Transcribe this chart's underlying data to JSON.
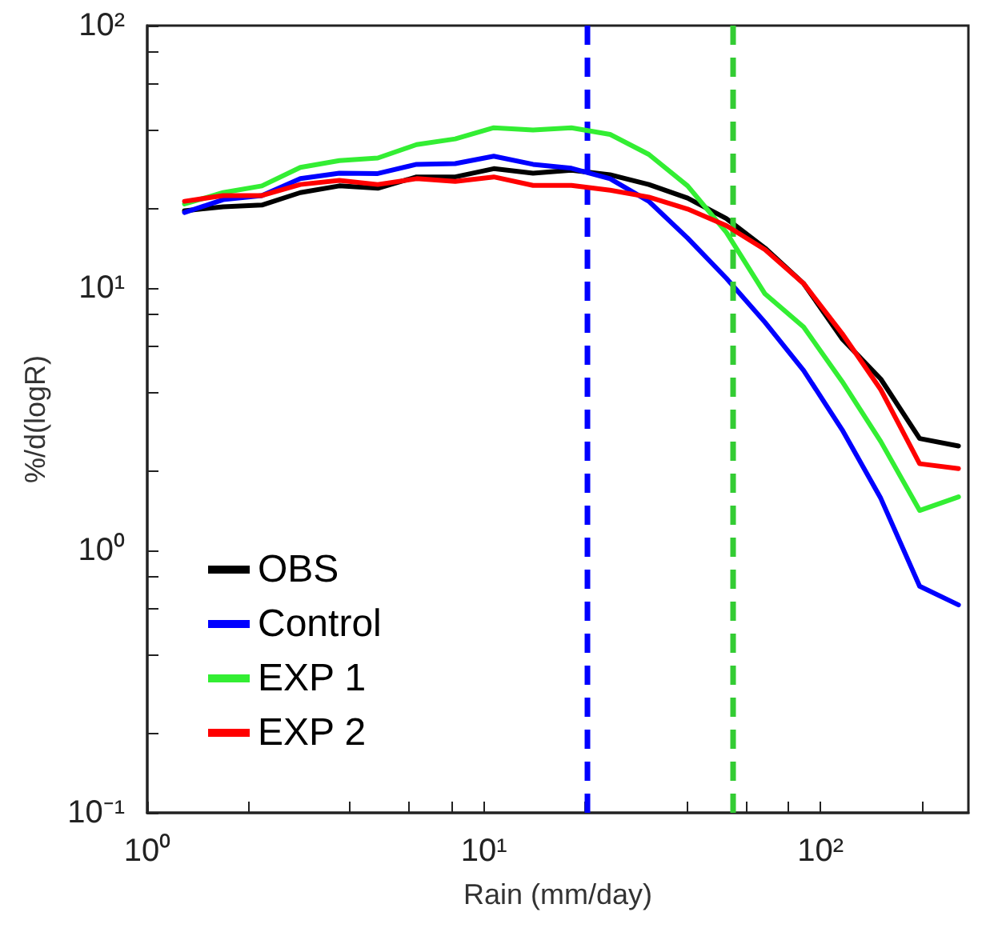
{
  "chart_data": {
    "type": "line",
    "xlabel": "Rain (mm/day)",
    "ylabel": "%/d(logR)",
    "log": "xy",
    "grid": false,
    "legend": "bottom left",
    "line_style": "solid",
    "marker": "none",
    "x": [
      1.29,
      1.68,
      2.19,
      2.85,
      3.72,
      4.84,
      6.31,
      8.22,
      10.7,
      14.0,
      18.2,
      23.7,
      30.9,
      40.3,
      52.5,
      68.4,
      89.1,
      116,
      151,
      197,
      257
    ],
    "series": [
      {
        "name": "OBS",
        "color": "#000000",
        "values": [
          19.7,
          20.4,
          20.7,
          23.1,
          24.5,
          24,
          26.5,
          26.5,
          28.5,
          27.4,
          28.1,
          27,
          24.8,
          22,
          18.4,
          14.2,
          10.4,
          6.4,
          4.5,
          2.67,
          2.5
        ]
      },
      {
        "name": "Control",
        "color": "#0000ff",
        "values": [
          19.4,
          21.7,
          22.5,
          26.1,
          27.4,
          27.3,
          29.6,
          29.8,
          31.8,
          29.6,
          28.6,
          26.1,
          21.4,
          15.5,
          10.9,
          7.4,
          4.85,
          2.88,
          1.58,
          0.73,
          0.62
        ]
      },
      {
        "name": "EXP 1",
        "color": "#33ee33",
        "values": [
          20.9,
          23.1,
          24.5,
          28.8,
          30.6,
          31.3,
          35.2,
          37,
          40.8,
          40,
          40.8,
          38.5,
          32.3,
          24.5,
          16.3,
          9.5,
          7.1,
          4.4,
          2.6,
          1.42,
          1.6
        ]
      },
      {
        "name": "EXP 2",
        "color": "#ff0000",
        "values": [
          21.4,
          22.5,
          22.5,
          24.8,
          25.7,
          24.8,
          26.1,
          25.5,
          26.5,
          24.6,
          24.6,
          23.6,
          22.2,
          20,
          17.3,
          14,
          10.4,
          6.7,
          4.1,
          2.14,
          2.05
        ]
      }
    ],
    "xlim": [
      1,
      275
    ],
    "ylim": [
      0.1,
      100
    ],
    "xticks": [
      {
        "value": 1,
        "label": "10⁰"
      },
      {
        "value": 2,
        "label": null
      },
      {
        "value": 4,
        "label": null
      },
      {
        "value": 6,
        "label": null
      },
      {
        "value": 8,
        "label": null
      },
      {
        "value": 10,
        "label": "10¹"
      },
      {
        "value": 20,
        "label": null
      },
      {
        "value": 40,
        "label": null
      },
      {
        "value": 60,
        "label": null
      },
      {
        "value": 80,
        "label": null
      },
      {
        "value": 100,
        "label": "10²"
      },
      {
        "value": 200,
        "label": null
      }
    ],
    "yticks": [
      {
        "value": 0.1,
        "label": "10⁻¹"
      },
      {
        "value": 0.2,
        "label": null
      },
      {
        "value": 0.4,
        "label": null
      },
      {
        "value": 0.6,
        "label": null
      },
      {
        "value": 0.8,
        "label": null
      },
      {
        "value": 1,
        "label": "10⁰"
      },
      {
        "value": 2,
        "label": null
      },
      {
        "value": 4,
        "label": null
      },
      {
        "value": 6,
        "label": null
      },
      {
        "value": 8,
        "label": null
      },
      {
        "value": 10,
        "label": "10¹"
      },
      {
        "value": 20,
        "label": null
      },
      {
        "value": 40,
        "label": null
      },
      {
        "value": 60,
        "label": null
      },
      {
        "value": 80,
        "label": null
      },
      {
        "value": 100,
        "label": "10²"
      }
    ],
    "ref_lines": [
      {
        "axis": "x",
        "value": 20.3,
        "color": "#0000ff",
        "line_style": "dashed"
      },
      {
        "axis": "x",
        "value": 55,
        "color": "#33cc33",
        "line_style": "dashed"
      }
    ]
  }
}
